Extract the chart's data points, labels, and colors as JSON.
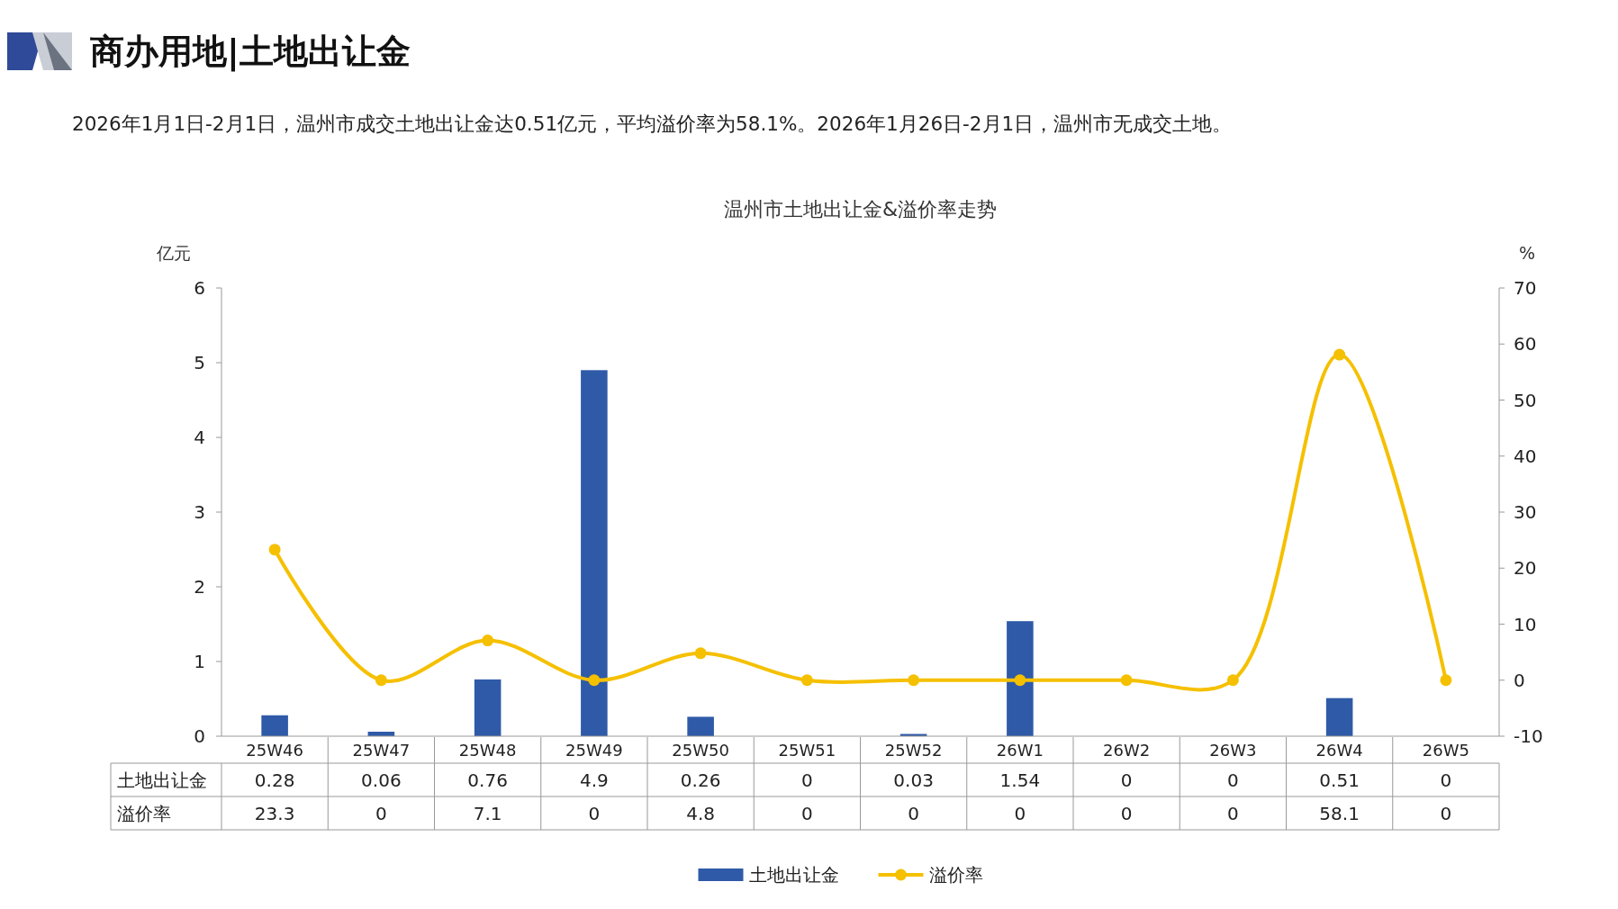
{
  "chart_data": {
    "type": "bar",
    "title": "商办用地|土地出让金",
    "subtitle": "2026年1月1日-2月1日，温州市成交土地出让金达0.51亿元，平均溢价率为58.1%。2026年1月26日-2月1日，温州市无成交土地。",
    "annotations": [
      "温州市土地出让金&溢价率走势"
    ],
    "ylabel": "亿元",
    "y2label": "%",
    "categories": [
      "25W46",
      "25W47",
      "25W48",
      "25W49",
      "25W50",
      "25W51",
      "25W52",
      "26W1",
      "26W2",
      "26W3",
      "26W4",
      "26W5"
    ],
    "series": [
      {
        "name": "土地出让金",
        "color": "#2f5aa8",
        "values": [
          0.28,
          0.06,
          0.76,
          4.9,
          0.26,
          0,
          0.03,
          1.54,
          0,
          0,
          0.51,
          0
        ]
      },
      {
        "name": "溢价率",
        "type": "line",
        "axis": "y2",
        "color": "#f5c000",
        "marker": "circle",
        "values": [
          23.3,
          0,
          7.1,
          0,
          4.8,
          0,
          0,
          0,
          0,
          0,
          58.1,
          0
        ]
      }
    ],
    "ylim": [
      0,
      6
    ],
    "yticks": [
      0,
      1,
      2,
      3,
      4,
      5,
      6
    ],
    "y2lim": [
      -10,
      70
    ],
    "y2ticks": [
      -10,
      0,
      10,
      20,
      30,
      40,
      50,
      60,
      70
    ],
    "data_labels": true,
    "legend": "bottom",
    "grid": false
  }
}
